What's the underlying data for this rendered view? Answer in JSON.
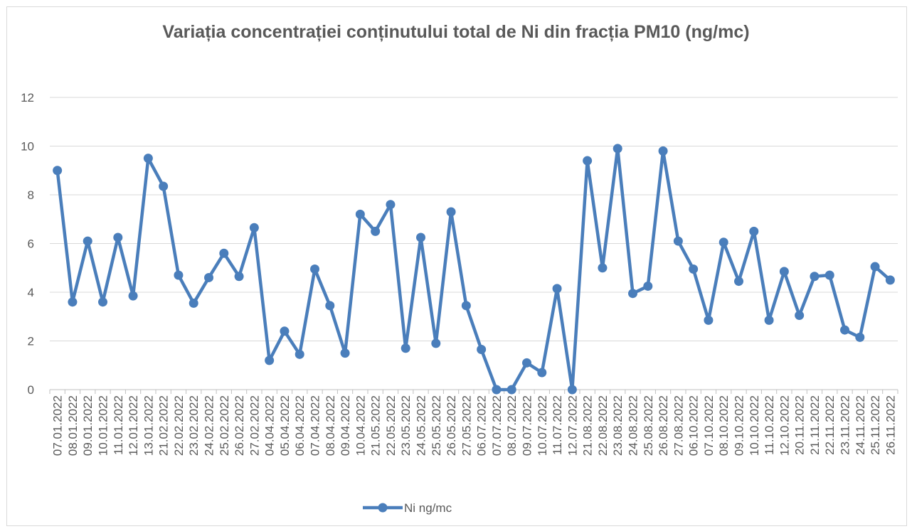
{
  "chart_data": {
    "type": "line",
    "title": "Variația concentrației conținutului total de Ni din fracția PM10 (ng/mc)",
    "categories": [
      "07.01.2022",
      "08.01.2022",
      "09.01.2022",
      "10.01.2022",
      "11.01.2022",
      "12.01.2022",
      "13.01.2022",
      "21.02.2022",
      "22.02.2022",
      "23.02.2022",
      "24.02.2022",
      "25.02.2022",
      "26.02.2022",
      "27.02.2022",
      "04.04.2022",
      "05.04.2022",
      "06.04.2022",
      "07.04.2022",
      "08.04.2022",
      "09.04.2022",
      "10.04.2022",
      "21.05.2022",
      "22.05.2022",
      "23.05.2022",
      "24.05.2022",
      "25.05.2022",
      "26.05.2022",
      "27.05.2022",
      "06.07.2022",
      "07.07.2022",
      "08.07.2022",
      "09.07.2022",
      "10.07.2022",
      "11.07.2022",
      "12.07.2022",
      "21.08.2022",
      "22.08.2022",
      "23.08.2022",
      "24.08.2022",
      "25.08.2022",
      "26.08.2022",
      "27.08.2022",
      "06.10.2022",
      "07.10.2022",
      "08.10.2022",
      "09.10.2022",
      "10.10.2022",
      "11.10.2022",
      "12.10.2022",
      "20.11.2022",
      "21.11.2022",
      "22.11.2022",
      "23.11.2022",
      "24.11.2022",
      "25.11.2022",
      "26.11.2022"
    ],
    "series": [
      {
        "name": "Ni ng/mc",
        "color": "#4a7ebb",
        "values": [
          9.0,
          3.6,
          6.1,
          3.6,
          6.25,
          3.85,
          9.5,
          8.35,
          4.7,
          3.55,
          4.6,
          5.6,
          4.65,
          6.65,
          1.2,
          2.4,
          1.45,
          4.95,
          3.45,
          1.5,
          7.2,
          6.5,
          7.6,
          1.7,
          6.25,
          1.9,
          7.3,
          3.45,
          1.65,
          0,
          0,
          1.1,
          0.7,
          4.15,
          0,
          9.4,
          5.0,
          9.9,
          3.95,
          4.25,
          9.8,
          6.1,
          4.95,
          2.85,
          6.05,
          4.45,
          6.5,
          2.85,
          4.85,
          3.05,
          4.65,
          4.7,
          2.45,
          2.15,
          5.05,
          4.5
        ]
      }
    ],
    "ylim": [
      0,
      12
    ],
    "yticks": [
      0,
      2,
      4,
      6,
      8,
      10,
      12
    ],
    "grid": true,
    "legend": "bottom"
  }
}
